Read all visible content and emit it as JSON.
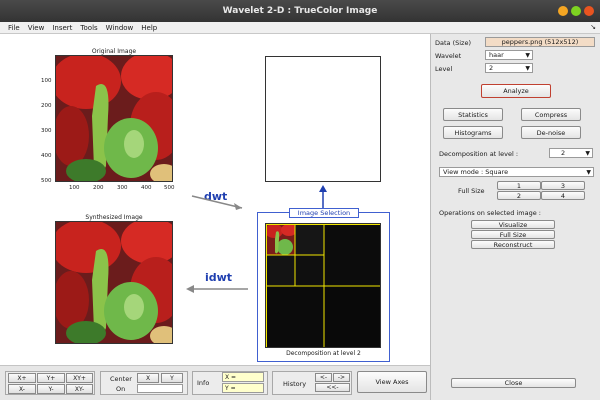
{
  "window": {
    "title": "Wavelet 2-D : TrueColor Image",
    "colors": {
      "close": "#e95420",
      "min": "#f5a623",
      "max": "#7ed321"
    }
  },
  "menubar": {
    "items": [
      "File",
      "View",
      "Insert",
      "Tools",
      "Window",
      "Help"
    ],
    "arrow": "↘"
  },
  "original": {
    "title": "Original Image",
    "yticks": [
      "100",
      "200",
      "300",
      "400",
      "500"
    ],
    "xticks": [
      "100",
      "200",
      "300",
      "400",
      "500"
    ]
  },
  "synthesized": {
    "title": "Synthesized Image"
  },
  "arrows": {
    "dwt": "dwt",
    "idwt": "idwt"
  },
  "selection": {
    "title": "Image Selection",
    "caption": "Decomposition at level 2"
  },
  "rpanel": {
    "data_label": "Data  (Size)",
    "data_value": "peppers.png  (512x512)",
    "wavelet_label": "Wavelet",
    "wavelet_value": "haar",
    "level_label": "Level",
    "level_value": "2",
    "analyze": "Analyze",
    "statistics": "Statistics",
    "compress": "Compress",
    "histograms": "Histograms",
    "denoise": "De-noise",
    "decomp_label": "Decomposition at level :",
    "decomp_value": "2",
    "view_mode": "View mode : Square",
    "full_size_label": "Full Size",
    "fs_buttons": [
      "1",
      "3",
      "2",
      "4"
    ],
    "ops_label": "Operations on selected image :",
    "visualize": "Visualize",
    "full_size": "Full Size",
    "reconstruct": "Reconstruct",
    "close": "Close"
  },
  "bottom": {
    "xplus": "X+",
    "yplus": "Y+",
    "xyplus": "XY+",
    "xminus": "X-",
    "yminus": "Y-",
    "xyminus": "XY-",
    "center_label": "Center",
    "on_label": "On",
    "x_btn": "X",
    "y_btn": "Y",
    "info_label": "Info",
    "xeq": "X =",
    "yeq": "Y =",
    "history_label": "History",
    "h_back": "<-",
    "h_fwd": "->",
    "h_back2": "<<-",
    "view_axes": "View Axes"
  }
}
